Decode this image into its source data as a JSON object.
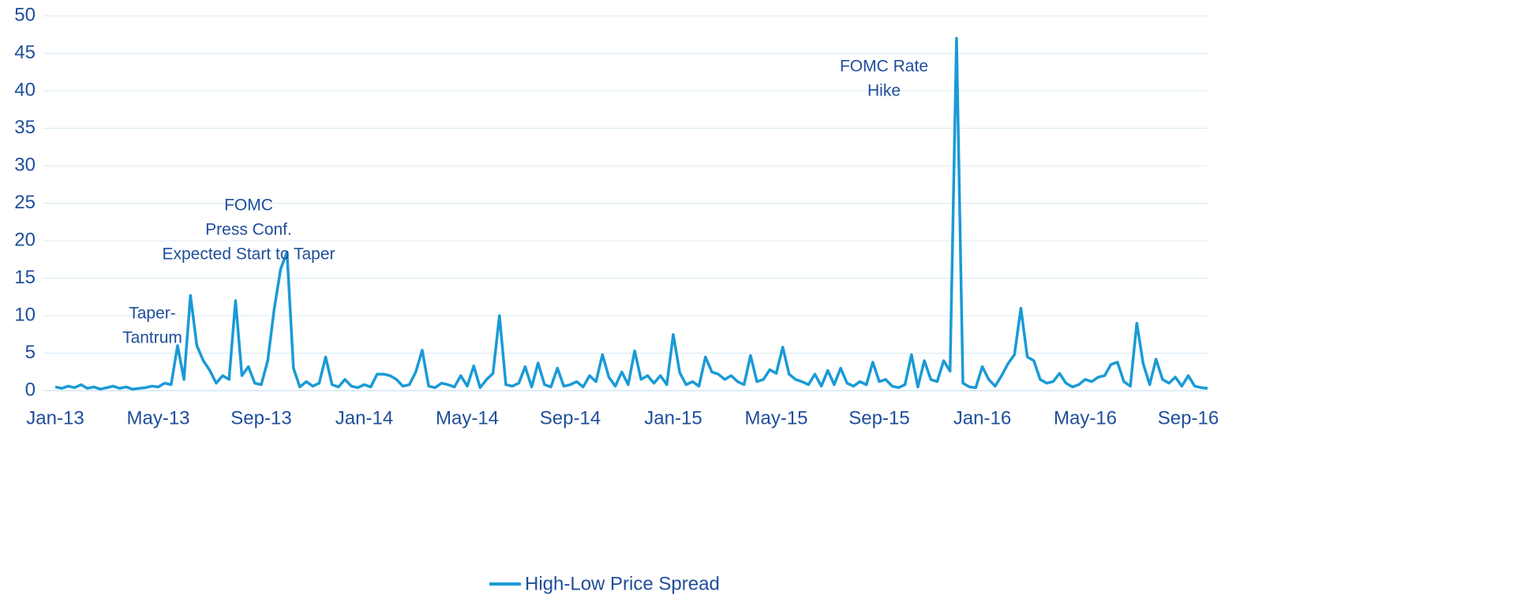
{
  "chart_data": {
    "type": "line",
    "categories": [
      "Jan-13",
      null,
      null,
      null,
      null,
      null,
      null,
      null,
      null,
      null,
      null,
      null,
      null,
      null,
      null,
      null,
      "May-13",
      null,
      null,
      null,
      null,
      null,
      null,
      null,
      null,
      null,
      null,
      null,
      null,
      null,
      null,
      null,
      "Sep-13",
      null,
      null,
      null,
      null,
      null,
      null,
      null,
      null,
      null,
      null,
      null,
      null,
      null,
      null,
      null,
      "Jan-14",
      null,
      null,
      null,
      null,
      null,
      null,
      null,
      null,
      null,
      null,
      null,
      null,
      null,
      null,
      null,
      "May-14",
      null,
      null,
      null,
      null,
      null,
      null,
      null,
      null,
      null,
      null,
      null,
      null,
      null,
      null,
      null,
      "Sep-14",
      null,
      null,
      null,
      null,
      null,
      null,
      null,
      null,
      null,
      null,
      null,
      null,
      null,
      null,
      null,
      "Jan-15",
      null,
      null,
      null,
      null,
      null,
      null,
      null,
      null,
      null,
      null,
      null,
      null,
      null,
      null,
      null,
      "May-15",
      null,
      null,
      null,
      null,
      null,
      null,
      null,
      null,
      null,
      null,
      null,
      null,
      null,
      null,
      null,
      "Sep-15",
      null,
      null,
      null,
      null,
      null,
      null,
      null,
      null,
      null,
      null,
      null,
      null,
      null,
      null,
      null,
      "Jan-16",
      null,
      null,
      null,
      null,
      null,
      null,
      null,
      null,
      null,
      null,
      null,
      null,
      null,
      null,
      null,
      "May-16",
      null,
      null,
      null,
      null,
      null,
      null,
      null,
      null,
      null,
      null,
      null,
      null,
      null,
      null,
      null,
      "Sep-16",
      null,
      null,
      null
    ],
    "series": [
      {
        "name": "High-Low Price Spread",
        "color": "#1a9ad6",
        "values": [
          0.5,
          0.3,
          0.6,
          0.4,
          0.8,
          0.3,
          0.5,
          0.2,
          0.4,
          0.6,
          0.3,
          0.5,
          0.2,
          0.3,
          0.4,
          0.6,
          0.5,
          1,
          0.8,
          6,
          1.5,
          12.7,
          6,
          4,
          2.7,
          1,
          2,
          1.5,
          12,
          2,
          3.2,
          1,
          0.8,
          4,
          10.8,
          16.2,
          18.5,
          3,
          0.5,
          1.2,
          0.6,
          1,
          4.5,
          0.8,
          0.5,
          1.5,
          0.6,
          0.4,
          0.8,
          0.5,
          2.2,
          2.2,
          2,
          1.5,
          0.6,
          0.8,
          2.5,
          5.4,
          0.6,
          0.4,
          1,
          0.8,
          0.5,
          2,
          0.6,
          3.3,
          0.4,
          1.5,
          2.3,
          10,
          0.8,
          0.6,
          1,
          3.2,
          0.5,
          3.7,
          0.8,
          0.5,
          3,
          0.6,
          0.8,
          1.2,
          0.5,
          2,
          1.2,
          4.8,
          1.8,
          0.6,
          2.5,
          0.8,
          5.3,
          1.5,
          2,
          1,
          2,
          0.8,
          7.5,
          2.4,
          0.8,
          1.2,
          0.6,
          4.5,
          2.5,
          2.2,
          1.5,
          2,
          1.2,
          0.8,
          4.7,
          1.2,
          1.5,
          2.8,
          2.3,
          5.8,
          2.2,
          1.5,
          1.2,
          0.8,
          2.2,
          0.6,
          2.7,
          0.8,
          3,
          1,
          0.6,
          1.2,
          0.8,
          3.8,
          1.2,
          1.5,
          0.6,
          0.4,
          0.8,
          4.8,
          0.5,
          4,
          1.5,
          1.2,
          4,
          2.6,
          47,
          1,
          0.5,
          0.4,
          3.2,
          1.5,
          0.6,
          2,
          3.6,
          4.8,
          11,
          4.5,
          4,
          1.5,
          1,
          1.2,
          2.3,
          1,
          0.5,
          0.8,
          1.5,
          1.2,
          1.8,
          2,
          3.5,
          3.8,
          1.2,
          0.6,
          9,
          3.6,
          0.8,
          4.2,
          1.5,
          1,
          1.8,
          0.6,
          2,
          0.6,
          0.4,
          0.3
        ]
      }
    ],
    "ylim": [
      0,
      50
    ],
    "yticks": [
      0,
      5,
      10,
      15,
      20,
      25,
      30,
      35,
      40,
      45,
      50
    ],
    "grid": true,
    "legend": "bottom",
    "annotations": [
      {
        "lines": [
          "Taper-",
          "Tantrum"
        ]
      },
      {
        "lines": [
          "FOMC",
          "Press Conf.",
          "Expected Start to Taper"
        ]
      },
      {
        "lines": [
          "FOMC Rate",
          "Hike"
        ]
      }
    ]
  }
}
